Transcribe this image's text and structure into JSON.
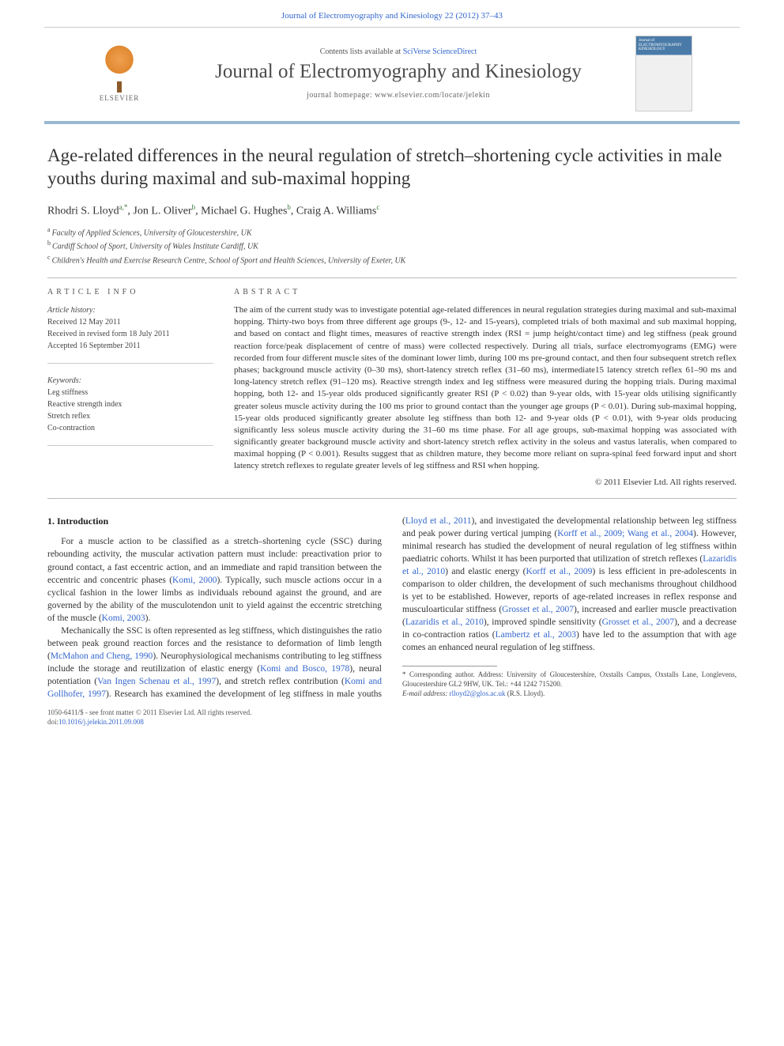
{
  "header": {
    "citation": "Journal of Electromyography and Kinesiology 22 (2012) 37–43"
  },
  "masthead": {
    "contents_prefix": "Contents lists available at ",
    "contents_link": "SciVerse ScienceDirect",
    "journal_name": "Journal of Electromyography and Kinesiology",
    "homepage_prefix": "journal homepage: ",
    "homepage_url": "www.elsevier.com/locate/jelekin",
    "publisher": "ELSEVIER",
    "cover_label_1": "Journal of",
    "cover_label_2": "ELECTROMYOGRAPHY",
    "cover_label_3": "KINESIOLOGY"
  },
  "article": {
    "title": "Age-related differences in the neural regulation of stretch–shortening cycle activities in male youths during maximal and sub-maximal hopping",
    "authors_html": "Rhodri S. Lloyd",
    "author1": "Rhodri S. Lloyd",
    "author1_sup": "a,*",
    "author2": ", Jon L. Oliver",
    "author2_sup": "b",
    "author3": ", Michael G. Hughes",
    "author3_sup": "b",
    "author4": ", Craig A. Williams",
    "author4_sup": "c",
    "aff_a_sup": "a",
    "aff_a": "Faculty of Applied Sciences, University of Gloucestershire, UK",
    "aff_b_sup": "b",
    "aff_b": "Cardiff School of Sport, University of Wales Institute Cardiff, UK",
    "aff_c_sup": "c",
    "aff_c": "Children's Health and Exercise Research Centre, School of Sport and Health Sciences, University of Exeter, UK"
  },
  "info": {
    "article_info_head": "ARTICLE INFO",
    "abstract_head": "ABSTRACT",
    "history_label": "Article history:",
    "received": "Received 12 May 2011",
    "revised": "Received in revised form 18 July 2011",
    "accepted": "Accepted 16 September 2011",
    "keywords_label": "Keywords:",
    "kw1": "Leg stiffness",
    "kw2": "Reactive strength index",
    "kw3": "Stretch reflex",
    "kw4": "Co-contraction"
  },
  "abstract": {
    "text": "The aim of the current study was to investigate potential age-related differences in neural regulation strategies during maximal and sub-maximal hopping. Thirty-two boys from three different age groups (9-, 12- and 15-years), completed trials of both maximal and sub maximal hopping, and based on contact and flight times, measures of reactive strength index (RSI = jump height/contact time) and leg stiffness (peak ground reaction force/peak displacement of centre of mass) were collected respectively. During all trials, surface electromyograms (EMG) were recorded from four different muscle sites of the dominant lower limb, during 100 ms pre-ground contact, and then four subsequent stretch reflex phases; background muscle activity (0–30 ms), short-latency stretch reflex (31–60 ms), intermediate15 latency stretch reflex 61–90 ms and long-latency stretch reflex (91–120 ms). Reactive strength index and leg stiffness were measured during the hopping trials. During maximal hopping, both 12- and 15-year olds produced significantly greater RSI (P < 0.02) than 9-year olds, with 15-year olds utilising significantly greater soleus muscle activity during the 100 ms prior to ground contact than the younger age groups (P < 0.01). During sub-maximal hopping, 15-year olds produced significantly greater absolute leg stiffness than both 12- and 9-year olds (P < 0.01), with 9-year olds producing significantly less soleus muscle activity during the 31–60 ms time phase. For all age groups, sub-maximal hopping was associated with significantly greater background muscle activity and short-latency stretch reflex activity in the soleus and vastus lateralis, when compared to maximal hopping (P < 0.001). Results suggest that as children mature, they become more reliant on supra-spinal feed forward input and short latency stretch reflexes to regulate greater levels of leg stiffness and RSI when hopping.",
    "copyright": "© 2011 Elsevier Ltd. All rights reserved."
  },
  "body": {
    "heading1": "1. Introduction",
    "p1_a": "For a muscle action to be classified as a stretch–shortening cycle (SSC) during rebounding activity, the muscular activation pattern must include: preactivation prior to ground contact, a fast eccentric action, and an immediate and rapid transition between the eccentric and concentric phases (",
    "p1_l1": "Komi, 2000",
    "p1_b": "). Typically, such muscle actions occur in a cyclical fashion in the lower limbs as individuals rebound against the ground, and are governed by the ability of the musculotendon unit to yield against the eccentric stretching of the muscle (",
    "p1_l2": "Komi, 2003",
    "p1_c": ").",
    "p2_a": "Mechanically the SSC is often represented as leg stiffness, which distinguishes the ratio between peak ground reaction forces and the resistance to deformation of limb length (",
    "p2_l1": "McMahon and Cheng, 1990",
    "p2_b": "). Neurophysiological mechanisms contributing to leg stiffness",
    "p3_a": "include the storage and reutilization of elastic energy (",
    "p3_l1": "Komi and Bosco, 1978",
    "p3_b": "), neural potentiation (",
    "p3_l2": "Van Ingen Schenau et al., 1997",
    "p3_c": "), and stretch reflex contribution (",
    "p3_l3": "Komi and Gollhofer, 1997",
    "p3_d": "). Research has examined the development of leg stiffness in male youths (",
    "p3_l4": "Lloyd et al., 2011",
    "p3_e": "), and investigated the developmental relationship between leg stiffness and peak power during vertical jumping (",
    "p3_l5": "Korff et al., 2009; Wang et al., 2004",
    "p3_f": "). However, minimal research has studied the development of neural regulation of leg stiffness within paediatric cohorts. Whilst it has been purported that utilization of stretch reflexes (",
    "p3_l6": "Lazaridis et al., 2010",
    "p3_g": ") and elastic energy (",
    "p3_l7": "Korff et al., 2009",
    "p3_h": ") is less efficient in pre-adolescents in comparison to older children, the development of such mechanisms throughout childhood is yet to be established. However, reports of age-related increases in reflex response and musculoarticular stiffness (",
    "p3_l8": "Grosset et al., 2007",
    "p3_i": "), increased and earlier muscle preactivation (",
    "p3_l9": "Lazaridis et al., 2010",
    "p3_j": "), improved spindle sensitivity (",
    "p3_l10": "Grosset et al., 2007",
    "p3_k": "), and a decrease in co-contraction ratios (",
    "p3_l11": "Lambertz et al., 2003",
    "p3_m": ") have led to the assumption that with age comes an enhanced neural regulation of leg stiffness."
  },
  "footnote": {
    "corr_author_label": "* Corresponding author. Address: University of Gloucestershire, Oxstalls Campus, Oxstalls Lane, Longlevens, Gloucestershire GL2 9HW, UK. Tel.: +44 1242 715200.",
    "email_label": "E-mail address:",
    "email": "rlloyd2@glos.ac.uk",
    "email_suffix": " (R.S. Lloyd)."
  },
  "footer": {
    "line1": "1050-6411/$ - see front matter © 2011 Elsevier Ltd. All rights reserved.",
    "doi_label": "doi:",
    "doi": "10.1016/j.jelekin.2011.09.008"
  }
}
